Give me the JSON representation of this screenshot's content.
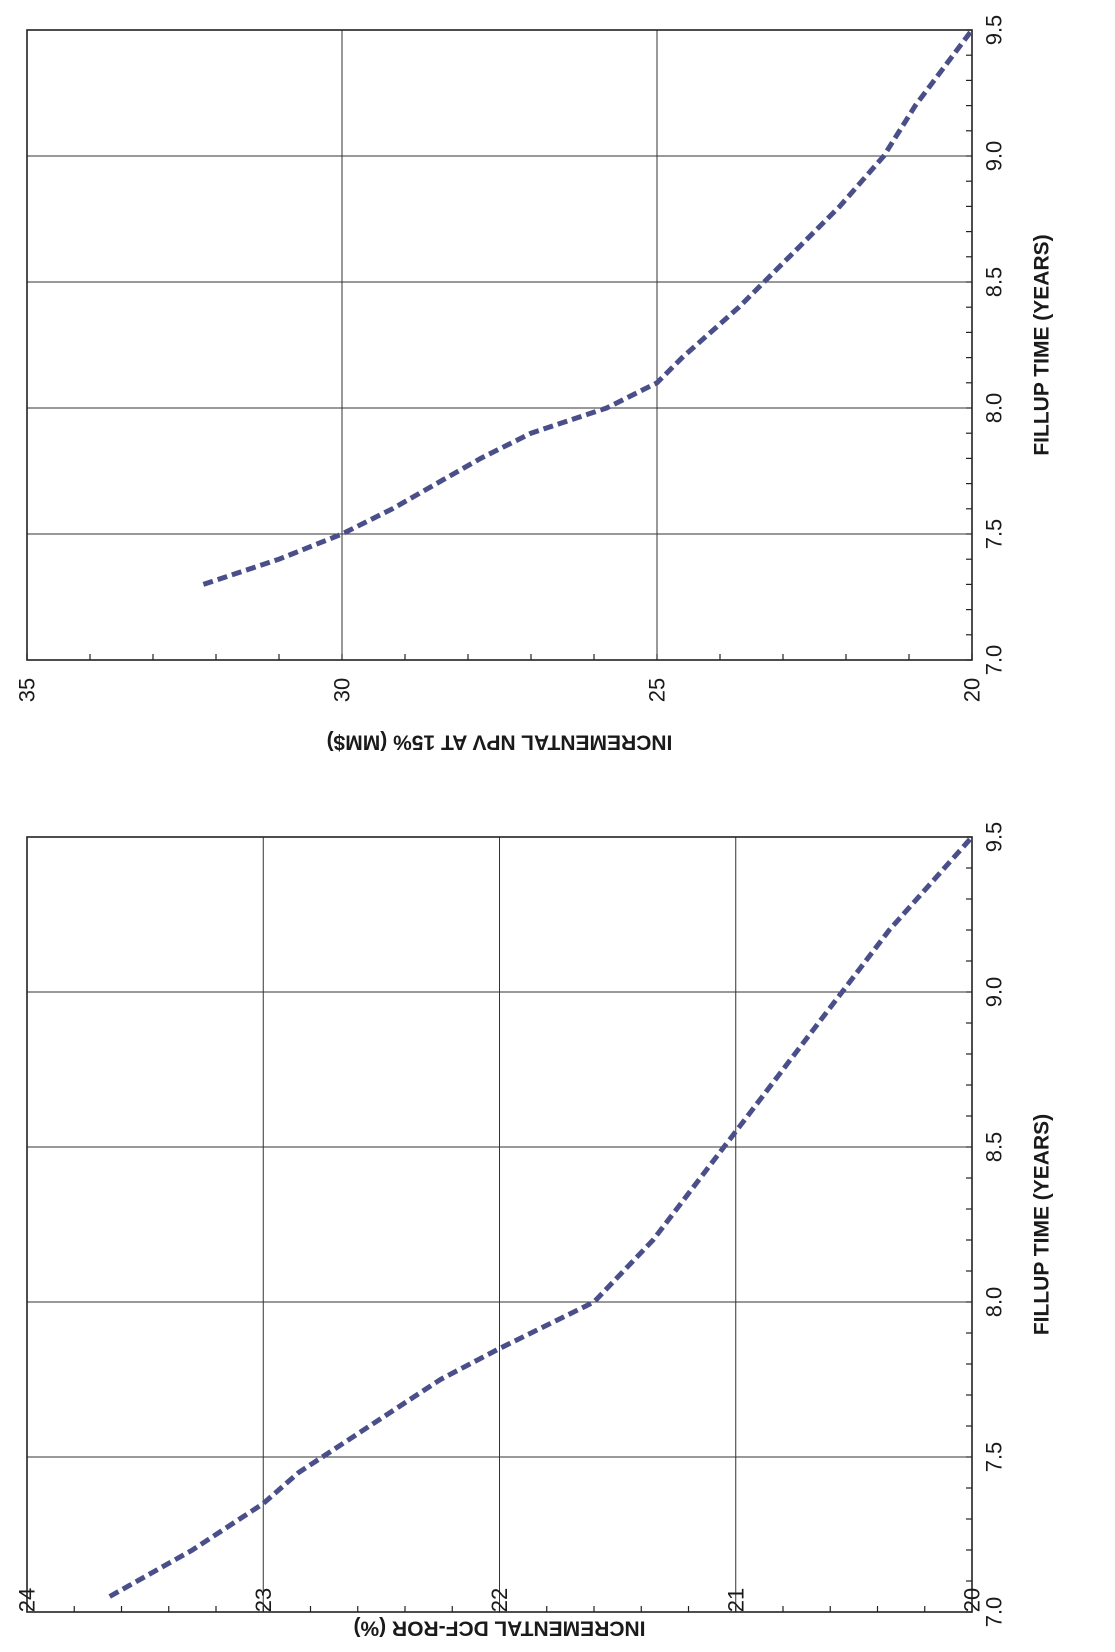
{
  "chart_data": [
    {
      "type": "line",
      "title": "",
      "xlabel": "FILLUP TIME (YEARS)",
      "ylabel": "INCREMENTAL NPV AT 15% (MM$)",
      "xlim": [
        7.0,
        9.5
      ],
      "ylim": [
        20,
        35
      ],
      "x_ticks": [
        "7.0",
        "7.5",
        "8.0",
        "8.5",
        "9.0",
        "9.5"
      ],
      "y_ticks": [
        "20",
        "25",
        "30",
        "35"
      ],
      "grid": true,
      "series": [
        {
          "line_style": "dashed",
          "color": "#4a4f8a",
          "x": [
            7.3,
            7.4,
            7.5,
            7.6,
            7.7,
            7.8,
            7.9,
            8.0,
            8.1,
            8.2,
            8.4,
            8.6,
            8.8,
            9.0,
            9.2,
            9.5
          ],
          "y": [
            32.2,
            31.0,
            30.0,
            29.2,
            28.5,
            27.8,
            27.0,
            25.8,
            25.0,
            24.6,
            23.7,
            22.9,
            22.1,
            21.4,
            20.9,
            20.0
          ]
        }
      ]
    },
    {
      "type": "line",
      "title": "",
      "xlabel": "FILLUP TIME (YEARS)",
      "ylabel": "INCREMENTAL DCF-ROR (%)",
      "xlim": [
        7.0,
        9.5
      ],
      "ylim": [
        20,
        24
      ],
      "x_ticks": [
        "7.0",
        "7.5",
        "8.0",
        "8.5",
        "9.0",
        "9.5"
      ],
      "y_ticks": [
        "20",
        "21",
        "22",
        "23",
        "24"
      ],
      "grid": true,
      "series": [
        {
          "line_style": "dashed",
          "color": "#4a4f8a",
          "x": [
            7.05,
            7.2,
            7.35,
            7.45,
            7.6,
            7.75,
            7.85,
            8.0,
            8.2,
            8.4,
            8.6,
            8.8,
            9.0,
            9.2,
            9.5
          ],
          "y": [
            23.65,
            23.3,
            23.0,
            22.85,
            22.55,
            22.25,
            22.0,
            21.6,
            21.35,
            21.15,
            20.95,
            20.75,
            20.55,
            20.35,
            20.0
          ]
        }
      ]
    }
  ]
}
